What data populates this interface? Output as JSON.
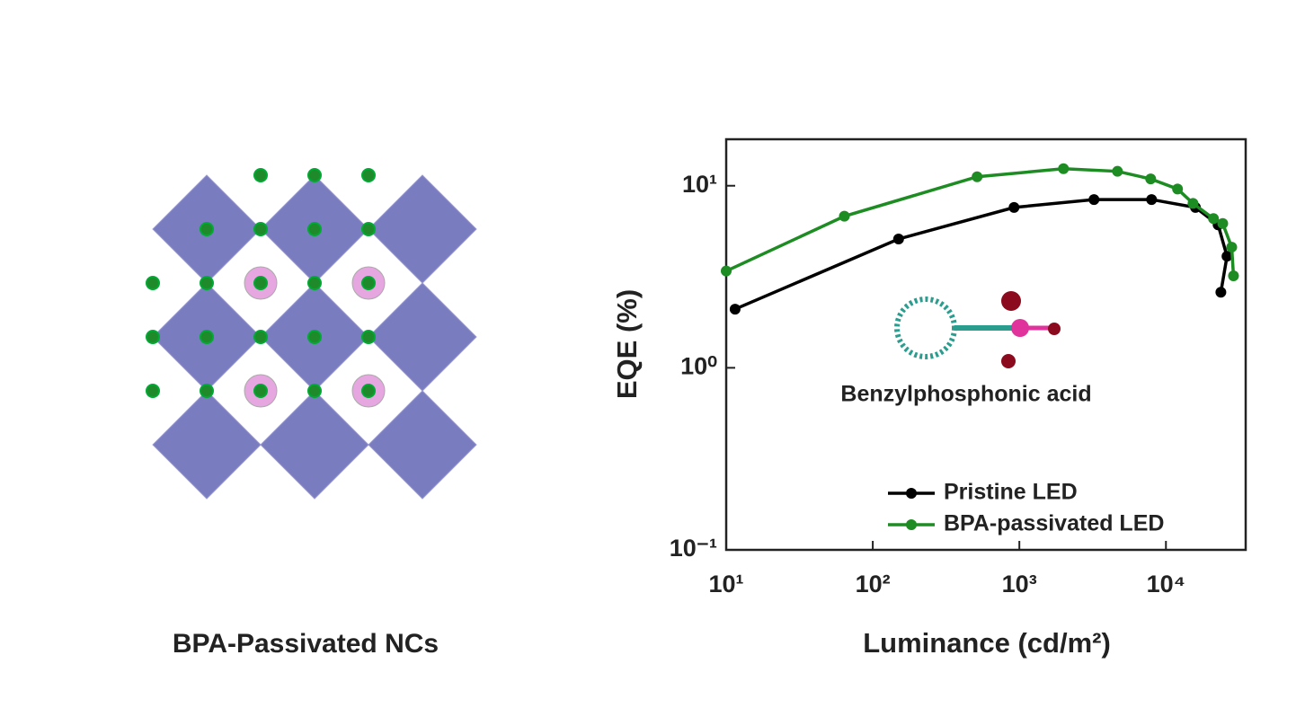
{
  "figure": {
    "caption": "BPA-Passivated NCs"
  },
  "chart_data": {
    "type": "line",
    "x_label": "Luminance (cd/m²)",
    "y_label": "EQE (%)",
    "annotation": "Benzylphosphonic acid",
    "log_x": true,
    "log_y": true,
    "xlim": [
      10,
      35000
    ],
    "ylim": [
      0.1,
      18
    ],
    "xticks": [
      {
        "value": 10,
        "label": "10¹"
      },
      {
        "value": 100,
        "label": "10²"
      },
      {
        "value": 1000,
        "label": "10³"
      },
      {
        "value": 10000,
        "label": "10⁴"
      }
    ],
    "yticks": [
      {
        "value": 0.1,
        "label": "10⁻¹"
      },
      {
        "value": 1,
        "label": "10⁰"
      },
      {
        "value": 10,
        "label": "10¹"
      }
    ],
    "legend": "lower right",
    "series": [
      {
        "name": "Pristine LED",
        "color": "#000000",
        "x": [
          11.5,
          150,
          920,
          3230,
          7980,
          15900,
          22700,
          26100,
          23700
        ],
        "values": [
          2.1,
          5.1,
          7.6,
          8.4,
          8.4,
          7.6,
          6.1,
          4.1,
          2.6
        ]
      },
      {
        "name": "BPA-passivated LED",
        "color": "#1d8c22",
        "x": [
          10,
          64,
          515,
          2000,
          4670,
          7870,
          12000,
          15300,
          21100,
          24400,
          28100,
          28900
        ],
        "values": [
          3.4,
          6.8,
          11.2,
          12.4,
          12.0,
          10.9,
          9.6,
          8.0,
          6.6,
          6.2,
          4.6,
          3.2
        ]
      }
    ]
  }
}
